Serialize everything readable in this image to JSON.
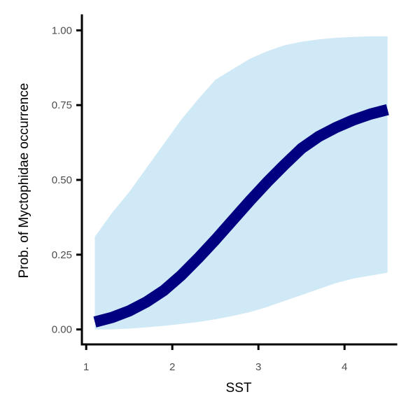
{
  "chart_data": {
    "type": "line",
    "xlabel": "SST",
    "ylabel": "Prob. of  Myctophidae  occurrence",
    "xlim": [
      0.95,
      4.6
    ],
    "ylim": [
      -0.05,
      1.05
    ],
    "x_ticks": [
      1,
      2,
      3,
      4
    ],
    "x_tick_labels": [
      "1",
      "2",
      "3",
      "4"
    ],
    "y_ticks": [
      0,
      0.25,
      0.5,
      0.75,
      1
    ],
    "y_tick_labels": [
      "0.00",
      "0.25",
      "0.50",
      "0.75",
      "1.00"
    ],
    "grid": false,
    "legend": "none",
    "series": [
      {
        "x": [
          1.1,
          1.3,
          1.5,
          1.7,
          1.9,
          2.1,
          2.3,
          2.5,
          2.7,
          2.9,
          3.1,
          3.3,
          3.5,
          3.7,
          3.9,
          4.1,
          4.3,
          4.5
        ],
        "y": [
          0.025,
          0.04,
          0.062,
          0.092,
          0.13,
          0.18,
          0.238,
          0.3,
          0.365,
          0.43,
          0.492,
          0.55,
          0.605,
          0.645,
          0.675,
          0.7,
          0.72,
          0.735
        ],
        "lower": [
          0.0,
          0.0,
          0.003,
          0.007,
          0.012,
          0.018,
          0.025,
          0.034,
          0.045,
          0.058,
          0.075,
          0.095,
          0.115,
          0.135,
          0.155,
          0.17,
          0.18,
          0.19
        ],
        "upper": [
          0.31,
          0.39,
          0.46,
          0.54,
          0.62,
          0.7,
          0.77,
          0.835,
          0.87,
          0.905,
          0.93,
          0.95,
          0.962,
          0.97,
          0.975,
          0.978,
          0.98,
          0.98
        ]
      }
    ],
    "colors": {
      "line": "#000080",
      "ribbon": "#d0e9f6",
      "axis": "#000000",
      "tick_label": "#4d4d4d"
    }
  }
}
